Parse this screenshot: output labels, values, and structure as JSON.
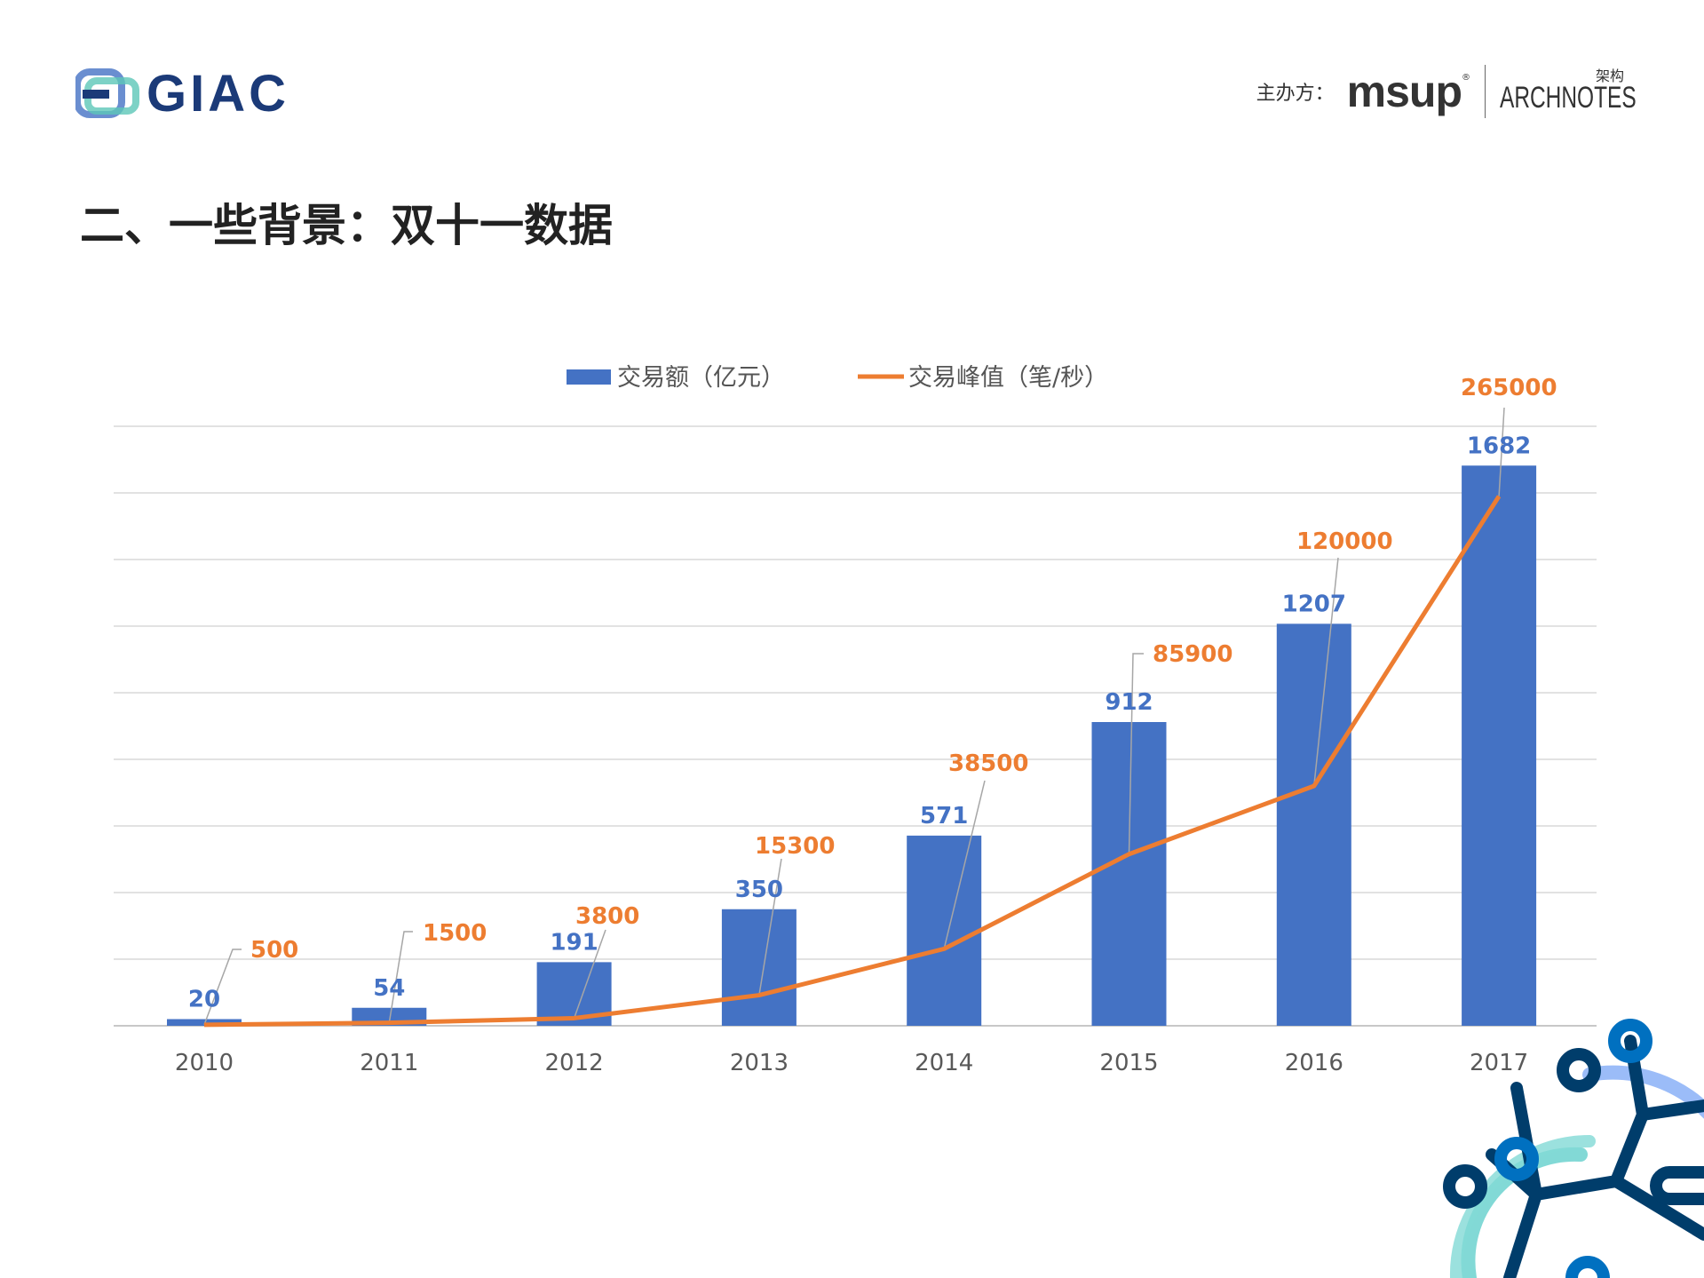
{
  "header": {
    "logo_text": "GIAC",
    "sponsor_label": "主办方：",
    "sponsor_logos": [
      "msup",
      "ARCHNOTES",
      "架构"
    ]
  },
  "page_title": "二、一些背景：双十一数据",
  "chart_data": {
    "type": "bar+line",
    "categories": [
      "2010",
      "2011",
      "2012",
      "2013",
      "2014",
      "2015",
      "2016",
      "2017"
    ],
    "series": [
      {
        "name": "交易额（亿元）",
        "type": "bar",
        "axis": "primary",
        "color": "#4472C4",
        "values": [
          20,
          54,
          191,
          350,
          571,
          912,
          1207,
          1682
        ]
      },
      {
        "name": "交易峰值（笔/秒）",
        "type": "line",
        "axis": "secondary",
        "color": "#ED7D31",
        "values": [
          500,
          1500,
          3800,
          15300,
          38500,
          85900,
          120000,
          265000
        ]
      }
    ],
    "primary_ylim": [
      0,
      1800
    ],
    "secondary_ylim": [
      0,
      300000
    ],
    "grid": true,
    "y_axis_labels_visible": false,
    "legend_position": "top",
    "data_labels": true
  }
}
